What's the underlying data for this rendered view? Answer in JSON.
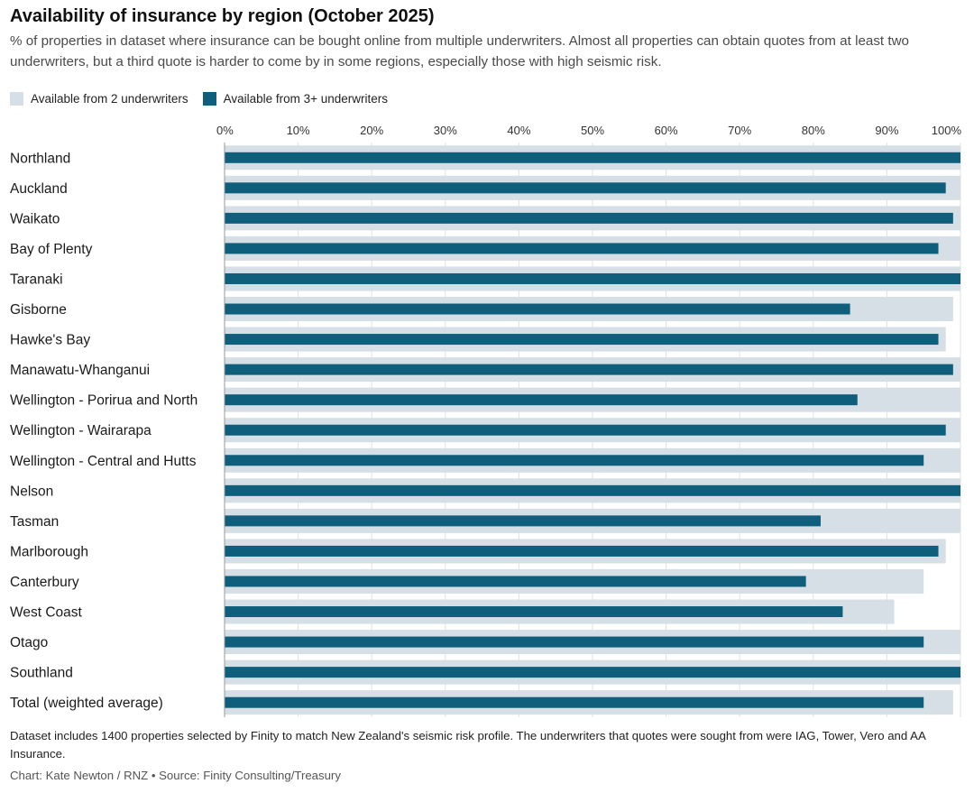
{
  "header": {
    "title": "Availability of insurance by region (October 2025)",
    "subtitle": "% of properties in dataset where insurance can be bought online from multiple underwriters. Almost all properties can obtain quotes from at least two underwriters, but a third quote is harder to come by in some regions, especially those with high seismic risk."
  },
  "legend": {
    "items": [
      {
        "label": "Available from 2 underwriters",
        "color": "#d5dfe5"
      },
      {
        "label": "Available from 3+ underwriters",
        "color": "#0e5e7c"
      }
    ]
  },
  "footer": {
    "note": "Dataset includes 1400 properties selected by Finity to match New Zealand's seismic risk profile. The underwriters that quotes were sought from were IAG, Tower, Vero and AA Insurance.",
    "credit": "Chart: Kate Newton / RNZ • Source: Finity Consulting/Treasury"
  },
  "chart_data": {
    "type": "bar",
    "orientation": "horizontal",
    "title": "Availability of insurance by region (October 2025)",
    "xlabel": "",
    "ylabel": "",
    "xlim": [
      0,
      100
    ],
    "x_ticks": [
      "0%",
      "10%",
      "20%",
      "30%",
      "40%",
      "50%",
      "60%",
      "70%",
      "80%",
      "90%",
      "100%"
    ],
    "grid": true,
    "legend_position": "top-left",
    "categories": [
      "Northland",
      "Auckland",
      "Waikato",
      "Bay of Plenty",
      "Taranaki",
      "Gisborne",
      "Hawke's Bay",
      "Manawatu-Whanganui",
      "Wellington - Porirua and North",
      "Wellington - Wairarapa",
      "Wellington - Central and Hutts",
      "Nelson",
      "Tasman",
      "Marlborough",
      "Canterbury",
      "West Coast",
      "Otago",
      "Southland",
      "Total (weighted average)"
    ],
    "series": [
      {
        "name": "Available from 2 underwriters",
        "color": "#d5dfe5",
        "values": [
          100,
          100,
          100,
          100,
          100,
          99,
          98,
          100,
          100,
          100,
          100,
          100,
          100,
          98,
          95,
          91,
          100,
          100,
          99
        ]
      },
      {
        "name": "Available from 3+ underwriters",
        "color": "#0e5e7c",
        "values": [
          100,
          98,
          99,
          97,
          100,
          85,
          97,
          99,
          86,
          98,
          95,
          100,
          81,
          97,
          79,
          84,
          95,
          100,
          95
        ]
      }
    ]
  }
}
